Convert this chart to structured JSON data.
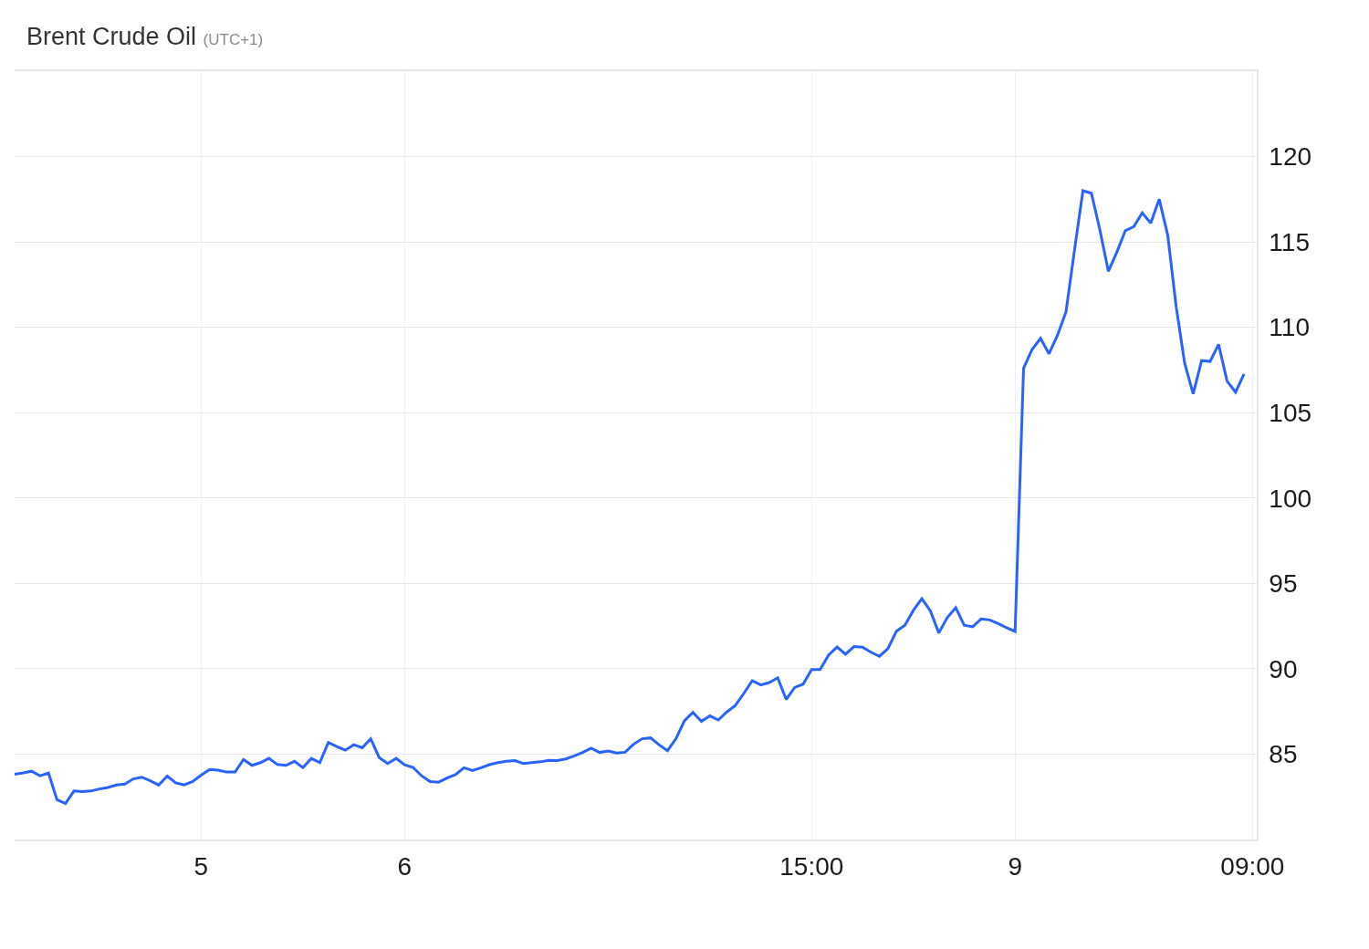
{
  "chart_data": {
    "type": "line",
    "title": "Brent Crude Oil",
    "subtitle": "(UTC+1)",
    "categories": [
      null,
      null,
      null,
      null,
      null,
      null,
      null,
      null,
      null,
      null,
      null,
      null,
      null,
      null,
      null,
      null,
      null,
      null,
      null,
      null,
      null,
      null,
      "5",
      null,
      null,
      null,
      null,
      null,
      null,
      null,
      null,
      null,
      null,
      null,
      null,
      null,
      null,
      null,
      null,
      null,
      null,
      null,
      null,
      null,
      null,
      null,
      "6",
      null,
      null,
      null,
      null,
      null,
      null,
      null,
      null,
      null,
      null,
      null,
      null,
      null,
      null,
      null,
      null,
      null,
      null,
      null,
      null,
      null,
      null,
      null,
      null,
      null,
      null,
      null,
      null,
      null,
      null,
      null,
      null,
      null,
      null,
      null,
      null,
      null,
      null,
      null,
      null,
      null,
      null,
      null,
      null,
      null,
      null,
      null,
      "15:00",
      null,
      null,
      null,
      null,
      null,
      null,
      null,
      null,
      null,
      null,
      null,
      null,
      null,
      null,
      null,
      null,
      null,
      null,
      null,
      null,
      null,
      null,
      null,
      "9",
      null,
      null,
      null,
      null,
      null,
      null,
      null,
      null,
      null,
      null,
      null,
      null,
      null,
      null,
      null,
      null,
      null,
      null,
      null,
      null,
      null,
      null,
      null,
      null,
      null,
      null,
      null,
      "09:00"
    ],
    "series": [
      {
        "color": "#2962ff",
        "values": [
          83.82,
          83.9,
          84.0,
          83.73,
          83.89,
          82.33,
          82.1,
          82.84,
          82.8,
          82.84,
          82.96,
          83.05,
          83.19,
          83.25,
          83.55,
          83.65,
          83.44,
          83.19,
          83.71,
          83.32,
          83.2,
          83.4,
          83.77,
          84.1,
          84.06,
          83.95,
          83.95,
          84.69,
          84.34,
          84.5,
          84.75,
          84.39,
          84.34,
          84.58,
          84.21,
          84.75,
          84.5,
          85.68,
          85.45,
          85.23,
          85.55,
          85.37,
          85.9,
          84.8,
          84.45,
          84.75,
          84.37,
          84.22,
          83.73,
          83.39,
          83.36,
          83.6,
          83.8,
          84.2,
          84.04,
          84.2,
          84.38,
          84.5,
          84.58,
          84.62,
          84.45,
          84.5,
          84.55,
          84.64,
          84.62,
          84.72,
          84.9,
          85.1,
          85.35,
          85.1,
          85.18,
          85.06,
          85.11,
          85.58,
          85.9,
          85.95,
          85.55,
          85.2,
          85.9,
          86.95,
          87.45,
          86.92,
          87.24,
          87.0,
          87.47,
          87.85,
          88.55,
          89.3,
          89.05,
          89.19,
          89.47,
          88.2,
          88.9,
          89.1,
          89.96,
          89.96,
          90.8,
          91.27,
          90.85,
          91.3,
          91.27,
          90.97,
          90.73,
          91.18,
          92.2,
          92.55,
          93.42,
          94.1,
          93.4,
          92.1,
          93.0,
          93.58,
          92.55,
          92.46,
          92.92,
          92.86,
          92.65,
          92.4,
          92.19,
          107.6,
          108.7,
          109.35,
          108.45,
          109.53,
          110.9,
          114.5,
          118.0,
          117.85,
          115.7,
          113.28,
          114.4,
          115.66,
          115.9,
          116.7,
          116.1,
          117.5,
          115.4,
          111.2,
          107.9,
          106.1,
          108.05,
          108.0,
          109.0,
          106.85,
          106.2,
          107.26,
          null
        ]
      }
    ],
    "ylim": [
      80,
      125
    ],
    "yticks": [
      85,
      90,
      95,
      100,
      105,
      110,
      115,
      120
    ],
    "grid": true,
    "line_style": "solid"
  }
}
